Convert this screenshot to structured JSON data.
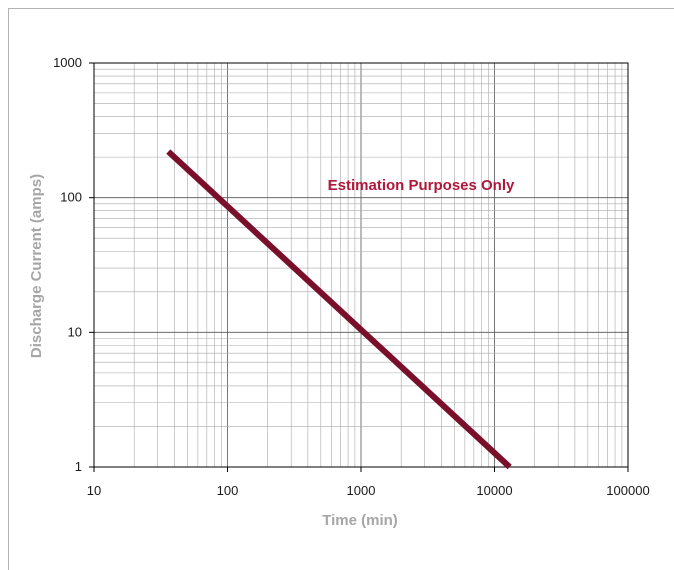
{
  "chart_data": {
    "type": "line",
    "title": "",
    "xlabel": "Time (min)",
    "ylabel": "Discharge Current (amps)",
    "x_scale": "log",
    "y_scale": "log",
    "xlim": [
      10,
      100000
    ],
    "ylim": [
      1,
      1000
    ],
    "x_ticks": [
      "10",
      "100",
      "1000",
      "10000",
      "100000"
    ],
    "y_ticks": [
      "1",
      "10",
      "100",
      "1000"
    ],
    "grid": true,
    "annotation": "Estimation Purposes Only",
    "series": [
      {
        "color": "#7a0f2b",
        "x": [
          36,
          13000
        ],
        "y": [
          220,
          1
        ]
      }
    ]
  }
}
